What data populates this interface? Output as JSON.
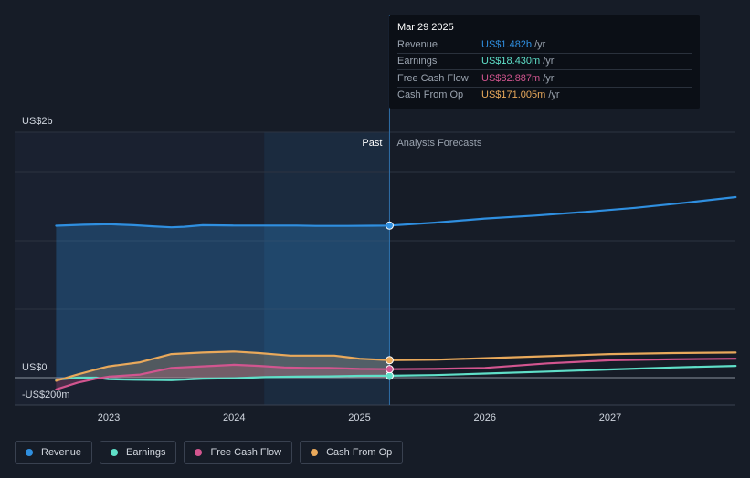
{
  "chart_data": {
    "type": "line",
    "x_ticks": [
      "2023",
      "2024",
      "2025",
      "2026",
      "2027"
    ],
    "y_labels": {
      "top": "US$2b",
      "zero": "US$0",
      "bottom": "-US$200m"
    },
    "ylim": [
      -200,
      2000
    ],
    "xlim": [
      2022.5,
      2028.0
    ],
    "past_label": "Past",
    "forecast_label": "Analysts Forecasts",
    "divider_x": 2025.24,
    "highlight_start_x": 2024.24,
    "series": [
      {
        "name": "Revenue",
        "color": "#2f8fe0",
        "fill": true,
        "points": [
          [
            2022.58,
            1480
          ],
          [
            2022.8,
            1490
          ],
          [
            2023.0,
            1495
          ],
          [
            2023.2,
            1485
          ],
          [
            2023.35,
            1475
          ],
          [
            2023.5,
            1465
          ],
          [
            2023.6,
            1470
          ],
          [
            2023.75,
            1485
          ],
          [
            2024.0,
            1482
          ],
          [
            2024.25,
            1482
          ],
          [
            2024.5,
            1482
          ],
          [
            2024.65,
            1478
          ],
          [
            2024.9,
            1478
          ],
          [
            2025.1,
            1480
          ],
          [
            2025.24,
            1482
          ],
          [
            2025.6,
            1510
          ],
          [
            2026.0,
            1550
          ],
          [
            2026.4,
            1580
          ],
          [
            2026.8,
            1615
          ],
          [
            2027.2,
            1655
          ],
          [
            2027.6,
            1705
          ],
          [
            2028.0,
            1760
          ]
        ]
      },
      {
        "name": "Earnings",
        "color": "#5fdfc8",
        "fill": false,
        "points": [
          [
            2022.58,
            -20
          ],
          [
            2022.75,
            0
          ],
          [
            2022.9,
            0
          ],
          [
            2023.0,
            -15
          ],
          [
            2023.2,
            -20
          ],
          [
            2023.5,
            -25
          ],
          [
            2023.75,
            -10
          ],
          [
            2024.0,
            -5
          ],
          [
            2024.25,
            5
          ],
          [
            2024.5,
            10
          ],
          [
            2024.75,
            12
          ],
          [
            2025.0,
            18
          ],
          [
            2025.24,
            18.43
          ],
          [
            2025.6,
            25
          ],
          [
            2026.0,
            40
          ],
          [
            2026.5,
            60
          ],
          [
            2027.0,
            80
          ],
          [
            2027.5,
            100
          ],
          [
            2028.0,
            115
          ]
        ]
      },
      {
        "name": "Free Cash Flow",
        "color": "#d2558f",
        "fill": true,
        "points": [
          [
            2022.58,
            -115
          ],
          [
            2022.75,
            -50
          ],
          [
            2022.9,
            -10
          ],
          [
            2023.0,
            10
          ],
          [
            2023.25,
            30
          ],
          [
            2023.5,
            95
          ],
          [
            2023.75,
            110
          ],
          [
            2024.0,
            125
          ],
          [
            2024.2,
            115
          ],
          [
            2024.4,
            100
          ],
          [
            2024.6,
            95
          ],
          [
            2024.75,
            95
          ],
          [
            2025.0,
            85
          ],
          [
            2025.24,
            82.887
          ],
          [
            2025.6,
            85
          ],
          [
            2026.0,
            95
          ],
          [
            2026.5,
            140
          ],
          [
            2027.0,
            170
          ],
          [
            2027.5,
            180
          ],
          [
            2028.0,
            185
          ]
        ]
      },
      {
        "name": "Cash From Op",
        "color": "#e9a95b",
        "fill": true,
        "points": [
          [
            2022.58,
            -30
          ],
          [
            2022.75,
            30
          ],
          [
            2022.9,
            80
          ],
          [
            2023.0,
            110
          ],
          [
            2023.25,
            150
          ],
          [
            2023.5,
            230
          ],
          [
            2023.75,
            245
          ],
          [
            2024.0,
            255
          ],
          [
            2024.2,
            240
          ],
          [
            2024.45,
            215
          ],
          [
            2024.65,
            215
          ],
          [
            2024.8,
            215
          ],
          [
            2025.0,
            185
          ],
          [
            2025.24,
            171.005
          ],
          [
            2025.6,
            175
          ],
          [
            2026.0,
            190
          ],
          [
            2026.5,
            210
          ],
          [
            2027.0,
            230
          ],
          [
            2027.5,
            240
          ],
          [
            2028.0,
            245
          ]
        ]
      }
    ]
  },
  "tooltip": {
    "date": "Mar 29 2025",
    "rows": [
      {
        "label": "Revenue",
        "value": "US$1.482b",
        "unit": "/yr",
        "color": "#2f8fe0"
      },
      {
        "label": "Earnings",
        "value": "US$18.430m",
        "unit": "/yr",
        "color": "#5fdfc8"
      },
      {
        "label": "Free Cash Flow",
        "value": "US$82.887m",
        "unit": "/yr",
        "color": "#d2558f"
      },
      {
        "label": "Cash From Op",
        "value": "US$171.005m",
        "unit": "/yr",
        "color": "#e9a95b"
      }
    ]
  },
  "legend": [
    {
      "label": "Revenue",
      "color": "#2f8fe0"
    },
    {
      "label": "Earnings",
      "color": "#5fdfc8"
    },
    {
      "label": "Free Cash Flow",
      "color": "#d2558f"
    },
    {
      "label": "Cash From Op",
      "color": "#e9a95b"
    }
  ]
}
